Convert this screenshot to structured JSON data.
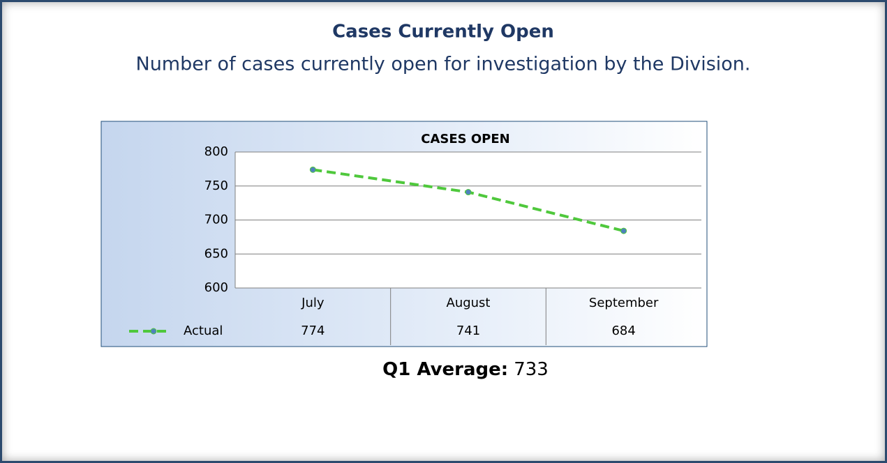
{
  "title": "Cases Currently Open",
  "subtitle": "Number of cases currently open for investigation by the Division.",
  "chart_data": {
    "type": "line",
    "title": "CASES OPEN",
    "categories": [
      "July",
      "August",
      "September"
    ],
    "series": [
      {
        "name": "Actual",
        "color": "#4fc83c",
        "values": [
          774,
          741,
          684
        ]
      }
    ],
    "ylim": [
      600,
      800
    ],
    "yticks": [
      600,
      650,
      700,
      750,
      800
    ],
    "grid": true,
    "data_table": true
  },
  "summary": {
    "label": "Q1 Average:",
    "value": 733
  }
}
